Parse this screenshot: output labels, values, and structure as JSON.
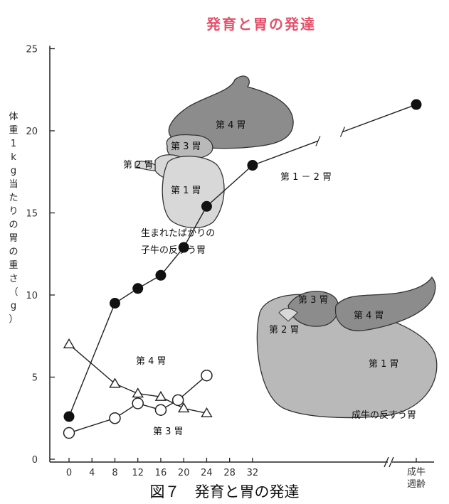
{
  "title": "発育と胃の発達",
  "caption": "図７　発育と胃の発達",
  "chart_data": {
    "type": "line",
    "title": "発育と胃の発達",
    "ylabel": "体重 1 kg当たりの胃の重さ（g）",
    "xlabel": "週齢",
    "ylim": [
      0,
      25
    ],
    "yticks": [
      "0",
      "5",
      "10",
      "15",
      "20",
      "25"
    ],
    "xticks": [
      "0",
      "4",
      "8",
      "12",
      "16",
      "20",
      "24",
      "28",
      "32"
    ],
    "x_extra_label": [
      "成牛",
      "週齢"
    ],
    "x_break": "//",
    "series": [
      {
        "name": "第 1 － 2 胃",
        "marker": "filled-circle",
        "x": [
          0,
          8,
          12,
          16,
          20,
          24,
          32,
          "成牛"
        ],
        "y": [
          2.6,
          9.5,
          10.4,
          11.2,
          12.9,
          15.4,
          17.9,
          21.6
        ]
      },
      {
        "name": "第 4 胃",
        "marker": "open-triangle",
        "x": [
          0,
          8,
          12,
          16,
          20,
          24
        ],
        "y": [
          7.0,
          4.6,
          4.0,
          3.8,
          3.1,
          2.8
        ]
      },
      {
        "name": "第 3 胃",
        "marker": "open-circle",
        "x": [
          0,
          8,
          12,
          16,
          19,
          24
        ],
        "y": [
          1.6,
          2.5,
          3.4,
          3.0,
          3.6,
          5.1
        ]
      }
    ],
    "illustrations": [
      {
        "caption": [
          "生まれたばかりの",
          "子牛の反すう胃"
        ],
        "parts": [
          "第 4 胃",
          "第 3 胃",
          "第 2 胃",
          "第 1 胃"
        ]
      },
      {
        "caption": [
          "成牛の反すう胃"
        ],
        "parts": [
          "第 3 胃",
          "第 4 胃",
          "第 2 胃",
          "第 1 胃"
        ]
      }
    ],
    "colors": {
      "title": "#e5506a",
      "stomach_dark": "#8c8c8c",
      "stomach_mid": "#b9b9b9",
      "stomach_light": "#d8d8d8"
    }
  }
}
